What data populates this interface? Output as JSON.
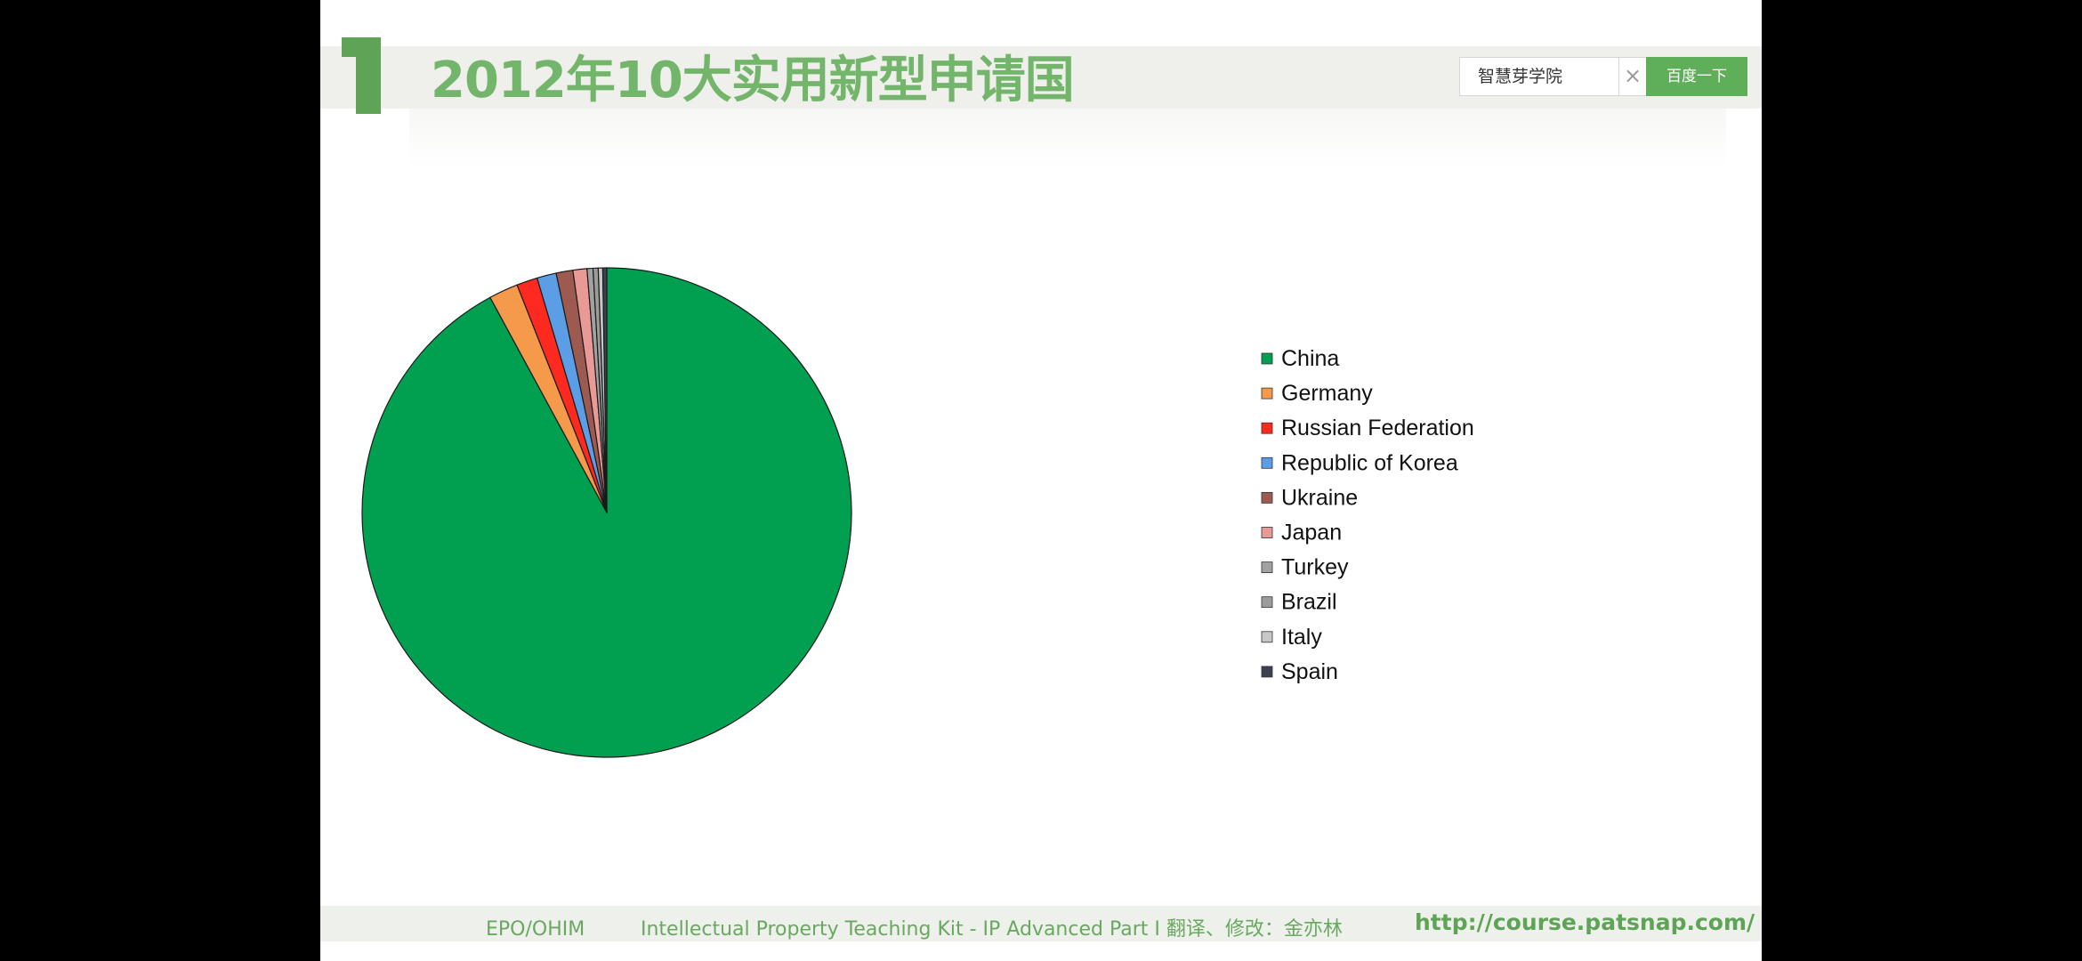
{
  "header": {
    "title": "2012年10大实用新型申请国",
    "number_mark_color": "#5fa456"
  },
  "search": {
    "value": "智慧芽学院",
    "clear_glyph": "×",
    "button_label": "百度一下",
    "button_color": "#5fae5a"
  },
  "footer": {
    "left": "EPO/OHIM",
    "middle": "Intellectual Property Teaching Kit - IP Advanced Part I 翻译、修改：金亦林",
    "url": "http://course.patsnap.com/"
  },
  "chart_data": {
    "type": "pie",
    "title": "",
    "start_angle": "12 o'clock",
    "direction": "clockwise",
    "legend_position": "right",
    "categories": [
      "China",
      "Germany",
      "Russian Federation",
      "Republic of Korea",
      "Ukraine",
      "Japan",
      "Turkey",
      "Brazil",
      "Italy",
      "Spain"
    ],
    "values": [
      740290,
      15550,
      11080,
      10270,
      8880,
      7440,
      3150,
      2740,
      2370,
      2120
    ],
    "colors": [
      "#00a050",
      "#f49a4a",
      "#ff2a1f",
      "#5b9ee6",
      "#9c5a50",
      "#e99a96",
      "#a2a2a2",
      "#9c9c9c",
      "#c8c8c8",
      "#3e4250"
    ]
  }
}
